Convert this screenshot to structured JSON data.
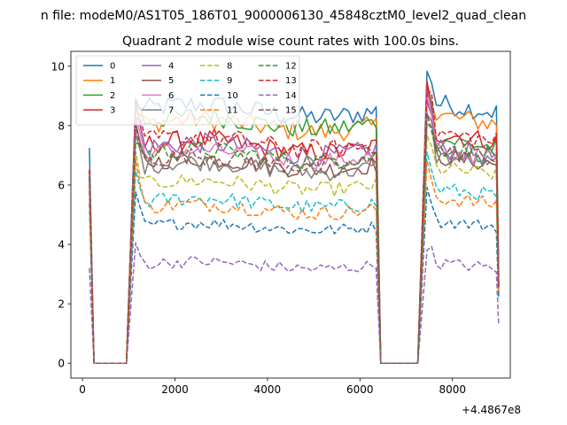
{
  "chart_data": {
    "type": "line",
    "suptitle": "n file: modeM0/AS1T05_186T01_9000006130_45848cztM0_level2_quad_clean",
    "title": "Quadrant 2 module wise count rates with 100.0s bins.",
    "xlabel": "",
    "ylabel": "",
    "x_offset_label": "+4.4867e8",
    "xlim": [
      -250,
      9250
    ],
    "ylim": [
      -0.5,
      10.5
    ],
    "x_ticks": [
      0,
      2000,
      4000,
      6000,
      8000
    ],
    "x_tick_labels": [
      "0",
      "2000",
      "4000",
      "6000",
      "8000"
    ],
    "y_ticks": [
      0,
      2,
      4,
      6,
      8,
      10
    ],
    "y_tick_labels": [
      "0",
      "2",
      "4",
      "6",
      "8",
      "10"
    ],
    "grid": false,
    "legend": {
      "placement": "top-left",
      "columns": 4
    },
    "bin_width": 100,
    "x_start": 150,
    "segments": {
      "first": {
        "start": 150,
        "ramp_down_end": 250,
        "zero_end": 950,
        "on_start": 1150,
        "on_end": 6350
      },
      "second": {
        "start": 6350,
        "ramp_down_end": 6450,
        "zero_end": 7250,
        "on_start": 7450,
        "on_end": 8950
      }
    },
    "series": [
      {
        "name": "0",
        "color": "#1f77b4",
        "dash": false,
        "start": 7.25,
        "seg1_peak": 8.8,
        "seg1_level": 8.5,
        "seg2_peak": 10.0,
        "seg2_level": 8.8,
        "noise": 0.35
      },
      {
        "name": "1",
        "color": "#ff7f0e",
        "dash": false,
        "start": 6.55,
        "seg1_peak": 8.6,
        "seg1_level": 8.0,
        "seg2_peak": 9.6,
        "seg2_level": 8.4,
        "noise": 0.35
      },
      {
        "name": "2",
        "color": "#2ca02c",
        "dash": false,
        "start": 6.5,
        "seg1_peak": 8.8,
        "seg1_level": 8.1,
        "seg2_peak": 9.3,
        "seg2_level": 7.6,
        "noise": 0.35
      },
      {
        "name": "3",
        "color": "#d62728",
        "dash": false,
        "start": 6.5,
        "seg1_peak": 8.5,
        "seg1_level": 7.3,
        "seg2_peak": 9.3,
        "seg2_level": 7.8,
        "noise": 0.35
      },
      {
        "name": "4",
        "color": "#9467bd",
        "dash": false,
        "start": 6.4,
        "seg1_peak": 8.7,
        "seg1_level": 7.2,
        "seg2_peak": 9.3,
        "seg2_level": 7.3,
        "noise": 0.35
      },
      {
        "name": "5",
        "color": "#8c564b",
        "dash": false,
        "start": 6.4,
        "seg1_peak": 7.8,
        "seg1_level": 6.7,
        "seg2_peak": 8.8,
        "seg2_level": 7.0,
        "noise": 0.3
      },
      {
        "name": "6",
        "color": "#e377c2",
        "dash": false,
        "start": 6.4,
        "seg1_peak": 8.3,
        "seg1_level": 7.0,
        "seg2_peak": 8.9,
        "seg2_level": 7.2,
        "noise": 0.3
      },
      {
        "name": "7",
        "color": "#7f7f7f",
        "dash": false,
        "start": 6.3,
        "seg1_peak": 7.6,
        "seg1_level": 6.6,
        "seg2_peak": 8.6,
        "seg2_level": 7.0,
        "noise": 0.3
      },
      {
        "name": "8",
        "color": "#bcbd22",
        "dash": true,
        "start": 6.0,
        "seg1_peak": 7.0,
        "seg1_level": 6.0,
        "seg2_peak": 7.6,
        "seg2_level": 6.6,
        "noise": 0.25
      },
      {
        "name": "9",
        "color": "#17becf",
        "dash": true,
        "start": 5.8,
        "seg1_peak": 6.4,
        "seg1_level": 5.4,
        "seg2_peak": 7.0,
        "seg2_level": 5.9,
        "noise": 0.25
      },
      {
        "name": "10",
        "color": "#1f77b4",
        "dash": true,
        "start": 5.4,
        "seg1_peak": 5.6,
        "seg1_level": 4.6,
        "seg2_peak": 6.0,
        "seg2_level": 4.8,
        "noise": 0.2
      },
      {
        "name": "11",
        "color": "#ff7f0e",
        "dash": true,
        "start": 5.9,
        "seg1_peak": 6.8,
        "seg1_level": 5.2,
        "seg2_peak": 6.6,
        "seg2_level": 5.6,
        "noise": 0.25
      },
      {
        "name": "12",
        "color": "#2ca02c",
        "dash": true,
        "start": 6.3,
        "seg1_peak": 7.6,
        "seg1_level": 7.0,
        "seg2_peak": 8.2,
        "seg2_level": 7.3,
        "noise": 0.3
      },
      {
        "name": "13",
        "color": "#d62728",
        "dash": true,
        "start": 6.5,
        "seg1_peak": 8.4,
        "seg1_level": 7.4,
        "seg2_peak": 9.4,
        "seg2_level": 7.8,
        "noise": 0.35
      },
      {
        "name": "14",
        "color": "#9467bd",
        "dash": true,
        "start": 3.2,
        "seg1_peak": 4.0,
        "seg1_level": 3.3,
        "seg2_peak": 4.0,
        "seg2_level": 3.4,
        "noise": 0.2
      },
      {
        "name": "15",
        "color": "#8c564b",
        "dash": true,
        "start": 6.3,
        "seg1_peak": 7.8,
        "seg1_level": 6.8,
        "seg2_peak": 8.6,
        "seg2_level": 7.2,
        "noise": 0.3
      }
    ]
  }
}
